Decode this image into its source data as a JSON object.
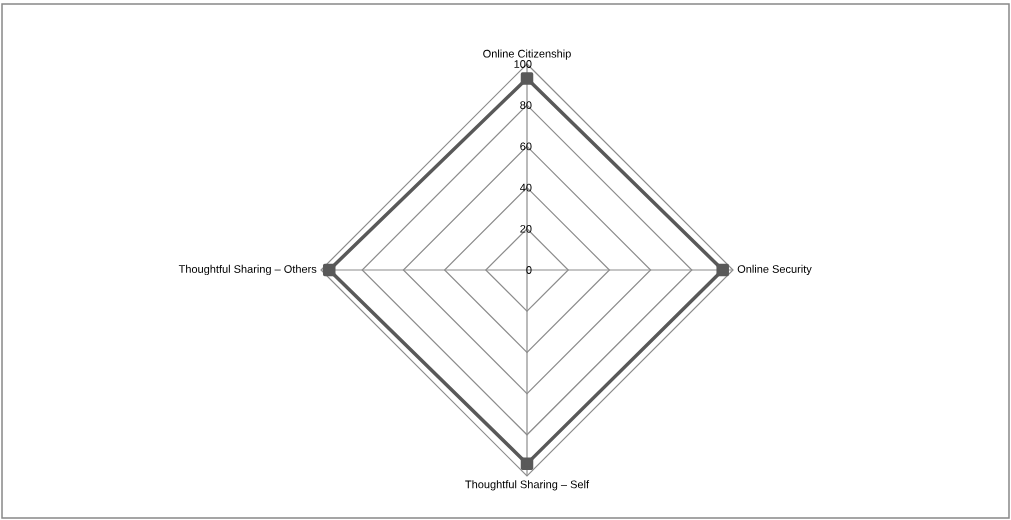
{
  "chart_data": {
    "type": "radar",
    "categories": [
      "Online Citizenship",
      "Online Security",
      "Thoughtful Sharing – Self",
      "Thoughtful Sharing – Others"
    ],
    "series": [
      {
        "color": "#595959",
        "values": [
          93,
          95,
          94,
          96
        ]
      }
    ],
    "ylim": [
      0,
      100
    ],
    "yticks": [
      0,
      20,
      40,
      60,
      80,
      100
    ],
    "grid": true,
    "marker": "square"
  }
}
